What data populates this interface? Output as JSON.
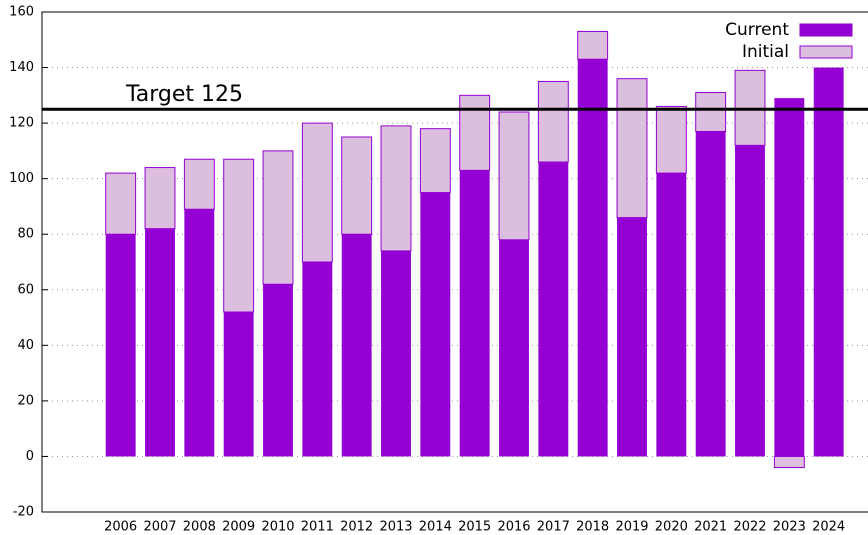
{
  "chart_data": {
    "type": "stacked-bar",
    "categories": [
      "2006",
      "2007",
      "2008",
      "2009",
      "2010",
      "2011",
      "2012",
      "2013",
      "2014",
      "2015",
      "2016",
      "2017",
      "2018",
      "2019",
      "2020",
      "2021",
      "2022",
      "2023",
      "2024"
    ],
    "series": [
      {
        "name": "Current",
        "color": "#9400d3",
        "values": [
          80,
          82,
          89,
          52,
          62,
          70,
          80,
          74,
          95,
          103,
          78,
          106,
          143,
          86,
          102,
          117,
          112,
          129,
          140
        ]
      },
      {
        "name": "Initial",
        "color": "#dcbfdf",
        "values": [
          22,
          22,
          18,
          55,
          48,
          50,
          35,
          45,
          23,
          27,
          46,
          29,
          10,
          50,
          24,
          14,
          27,
          -4,
          0
        ]
      }
    ],
    "target": {
      "value": 125,
      "label": "Target 125"
    },
    "ylim": [
      -20,
      160
    ],
    "yticks": [
      -20,
      0,
      20,
      40,
      60,
      80,
      100,
      120,
      140,
      160
    ],
    "grid": true,
    "legend": "top-right"
  }
}
